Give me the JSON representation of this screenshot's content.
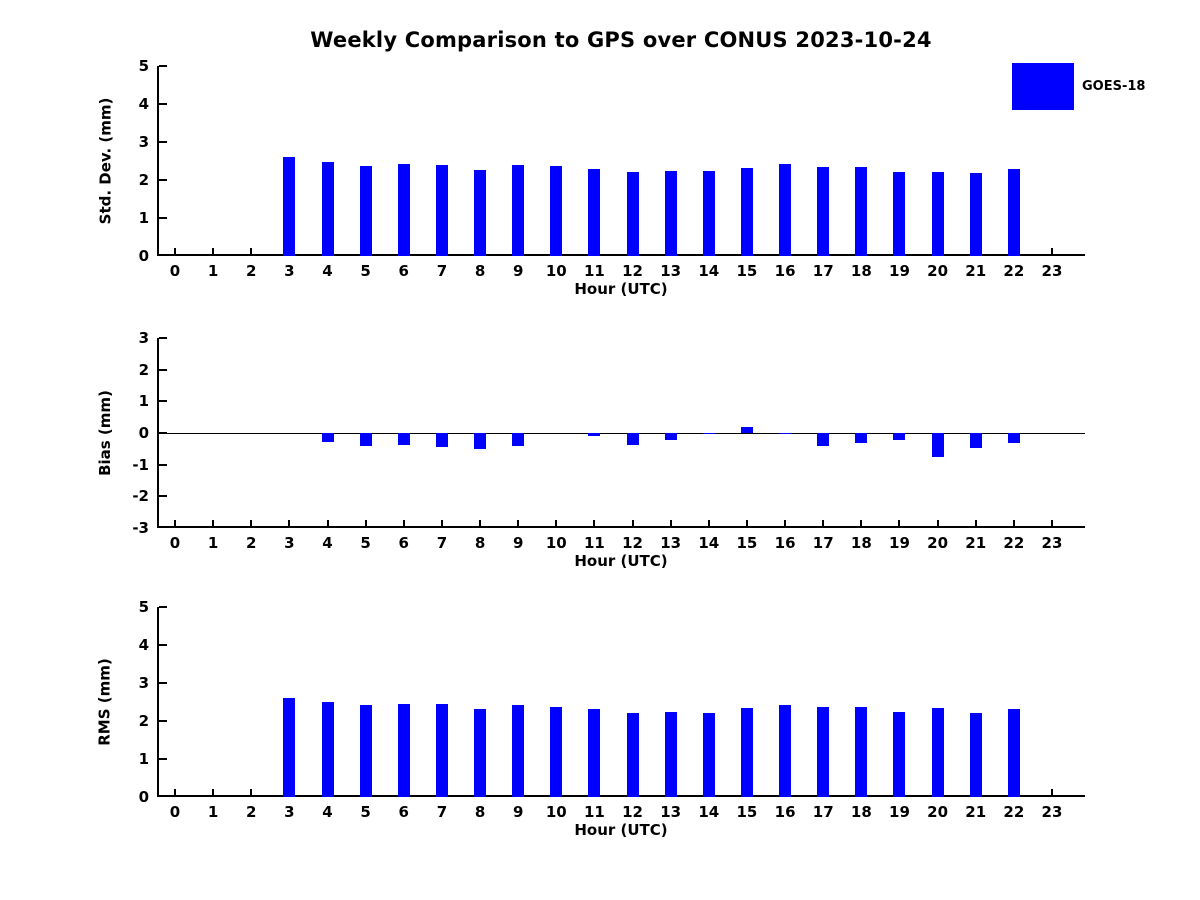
{
  "title": "Weekly Comparison to GPS over CONUS 2023-10-24",
  "legend": {
    "label": "GOES-18",
    "color": "#0000ff",
    "position": "top-right"
  },
  "hours": [
    0,
    1,
    2,
    3,
    4,
    5,
    6,
    7,
    8,
    9,
    10,
    11,
    12,
    13,
    14,
    15,
    16,
    17,
    18,
    19,
    20,
    21,
    22,
    23
  ],
  "chart_data": [
    {
      "type": "bar",
      "name": "std-dev",
      "title": "",
      "xlabel": "Hour (UTC)",
      "ylabel": "Std. Dev. (mm)",
      "ylim": [
        0,
        5
      ],
      "yticks": [
        0,
        1,
        2,
        3,
        4,
        5
      ],
      "grid": false,
      "series_name": "GOES-18",
      "color": "#0000ff",
      "x": [
        3,
        4,
        5,
        6,
        7,
        8,
        9,
        10,
        11,
        12,
        13,
        14,
        15,
        16,
        17,
        18,
        19,
        20,
        21,
        22
      ],
      "values": [
        2.6,
        2.47,
        2.36,
        2.42,
        2.39,
        2.26,
        2.4,
        2.37,
        2.29,
        2.2,
        2.23,
        2.23,
        2.32,
        2.42,
        2.35,
        2.35,
        2.21,
        2.21,
        2.18,
        2.28
      ]
    },
    {
      "type": "bar",
      "name": "bias",
      "title": "",
      "xlabel": "Hour (UTC)",
      "ylabel": "Bias (mm)",
      "ylim": [
        -3,
        3
      ],
      "yticks": [
        -3,
        -2,
        -1,
        0,
        1,
        2,
        3
      ],
      "grid": false,
      "zero_line": true,
      "series_name": "GOES-18",
      "color": "#0000ff",
      "x": [
        3,
        4,
        5,
        6,
        7,
        8,
        9,
        10,
        11,
        12,
        13,
        14,
        15,
        16,
        17,
        18,
        19,
        20,
        21,
        22
      ],
      "values": [
        0.0,
        -0.28,
        -0.42,
        -0.39,
        -0.44,
        -0.5,
        -0.4,
        0.0,
        -0.11,
        -0.37,
        -0.23,
        -0.04,
        0.18,
        -0.03,
        -0.4,
        -0.3,
        -0.22,
        -0.76,
        -0.47,
        -0.3
      ]
    },
    {
      "type": "bar",
      "name": "rms",
      "title": "",
      "xlabel": "Hour (UTC)",
      "ylabel": "RMS (mm)",
      "ylim": [
        0,
        5
      ],
      "yticks": [
        0,
        1,
        2,
        3,
        4,
        5
      ],
      "grid": false,
      "series_name": "GOES-18",
      "color": "#0000ff",
      "x": [
        3,
        4,
        5,
        6,
        7,
        8,
        9,
        10,
        11,
        12,
        13,
        14,
        15,
        16,
        17,
        18,
        19,
        20,
        21,
        22
      ],
      "values": [
        2.6,
        2.49,
        2.41,
        2.44,
        2.46,
        2.32,
        2.43,
        2.37,
        2.31,
        2.22,
        2.25,
        2.22,
        2.34,
        2.42,
        2.36,
        2.38,
        2.23,
        2.33,
        2.22,
        2.32
      ]
    }
  ]
}
